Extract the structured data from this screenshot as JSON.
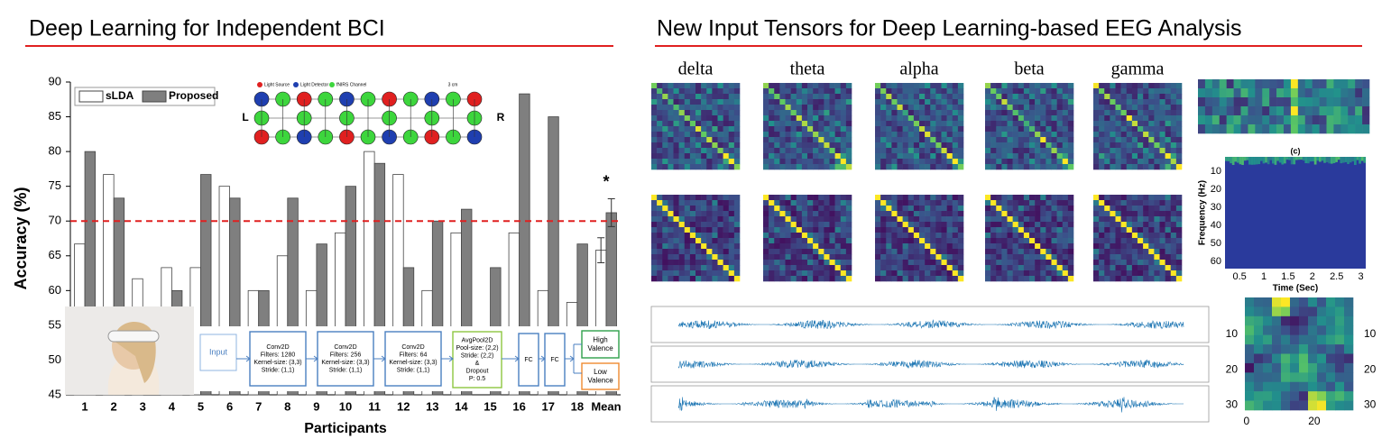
{
  "headings": {
    "left": "Deep Learning for Independent BCI",
    "right": "New Input Tensors for Deep Learning-based EEG Analysis"
  },
  "chart_data": [
    {
      "type": "bar",
      "x_label": "Participants",
      "y_label": "Accuracy (%)",
      "categories": [
        "1",
        "2",
        "3",
        "4",
        "5",
        "6",
        "7",
        "8",
        "9",
        "10",
        "11",
        "12",
        "13",
        "14",
        "15",
        "16",
        "17",
        "18",
        "Mean"
      ],
      "series": [
        {
          "name": "sLDA",
          "color": "#ffffff",
          "values": [
            66.7,
            76.7,
            61.7,
            63.3,
            63.3,
            75,
            60,
            65,
            60,
            68.3,
            80,
            76.7,
            60,
            68.3,
            null,
            68.3,
            60,
            58.3,
            65.8
          ],
          "errors": [
            null,
            null,
            null,
            null,
            null,
            null,
            null,
            null,
            null,
            null,
            null,
            null,
            null,
            null,
            null,
            null,
            null,
            null,
            1.8
          ]
        },
        {
          "name": "Proposed",
          "color": "#7f7f7f",
          "values": [
            80,
            73.3,
            null,
            60,
            76.7,
            73.3,
            60,
            73.3,
            66.7,
            75,
            78.3,
            63.3,
            70,
            71.7,
            63.3,
            88.3,
            85,
            66.7,
            71.2
          ],
          "errors": [
            null,
            null,
            null,
            null,
            null,
            null,
            null,
            null,
            null,
            null,
            null,
            null,
            null,
            null,
            null,
            null,
            null,
            null,
            2
          ]
        }
      ],
      "ylim": [
        45,
        90
      ],
      "yticks": [
        45,
        50,
        55,
        60,
        65,
        70,
        75,
        80,
        85,
        90
      ],
      "threshold": 70,
      "annotation": "*"
    }
  ],
  "montage": {
    "legend": [
      "Light Source",
      "Light Detector",
      "fNIRS Channel"
    ],
    "distance": "3 cm",
    "left": "L",
    "right": "R"
  },
  "network": {
    "input": "Input",
    "layers": [
      {
        "lines": [
          "Conv2D",
          "Filters: 1280",
          "Kernel-size: (3,3)",
          "Stride: (1,1)"
        ]
      },
      {
        "lines": [
          "Conv2D",
          "Filters: 256",
          "Kernel-size: (3,3)",
          "Stride: (1,1)"
        ]
      },
      {
        "lines": [
          "Conv2D",
          "Filters: 64",
          "Kernel-size: (3,3)",
          "Stride: (1,1)"
        ]
      },
      {
        "lines": [
          "AvgPool2D",
          "Pool-size: (2,2)",
          "Stride: (2,2)",
          "&",
          "Dropout",
          "P: 0.5"
        ]
      }
    ],
    "fc": [
      "FC",
      "FC"
    ],
    "outputs": [
      {
        "lines": [
          "High",
          "Valence"
        ]
      },
      {
        "lines": [
          "Low",
          "Valence"
        ]
      }
    ]
  },
  "eeg": {
    "bands": [
      "delta",
      "theta",
      "alpha",
      "beta",
      "gamma"
    ],
    "panel_c": "(c)",
    "spectrogram": {
      "x_label": "Time (Sec)",
      "y_label": "Frequency (Hz)",
      "xticks": [
        0.5,
        1,
        1.5,
        2,
        2.5,
        3
      ],
      "yticks": [
        10,
        20,
        30,
        40,
        50,
        60
      ]
    },
    "image": {
      "yticks": [
        10,
        20,
        30
      ],
      "xticks": [
        0,
        20
      ]
    }
  }
}
